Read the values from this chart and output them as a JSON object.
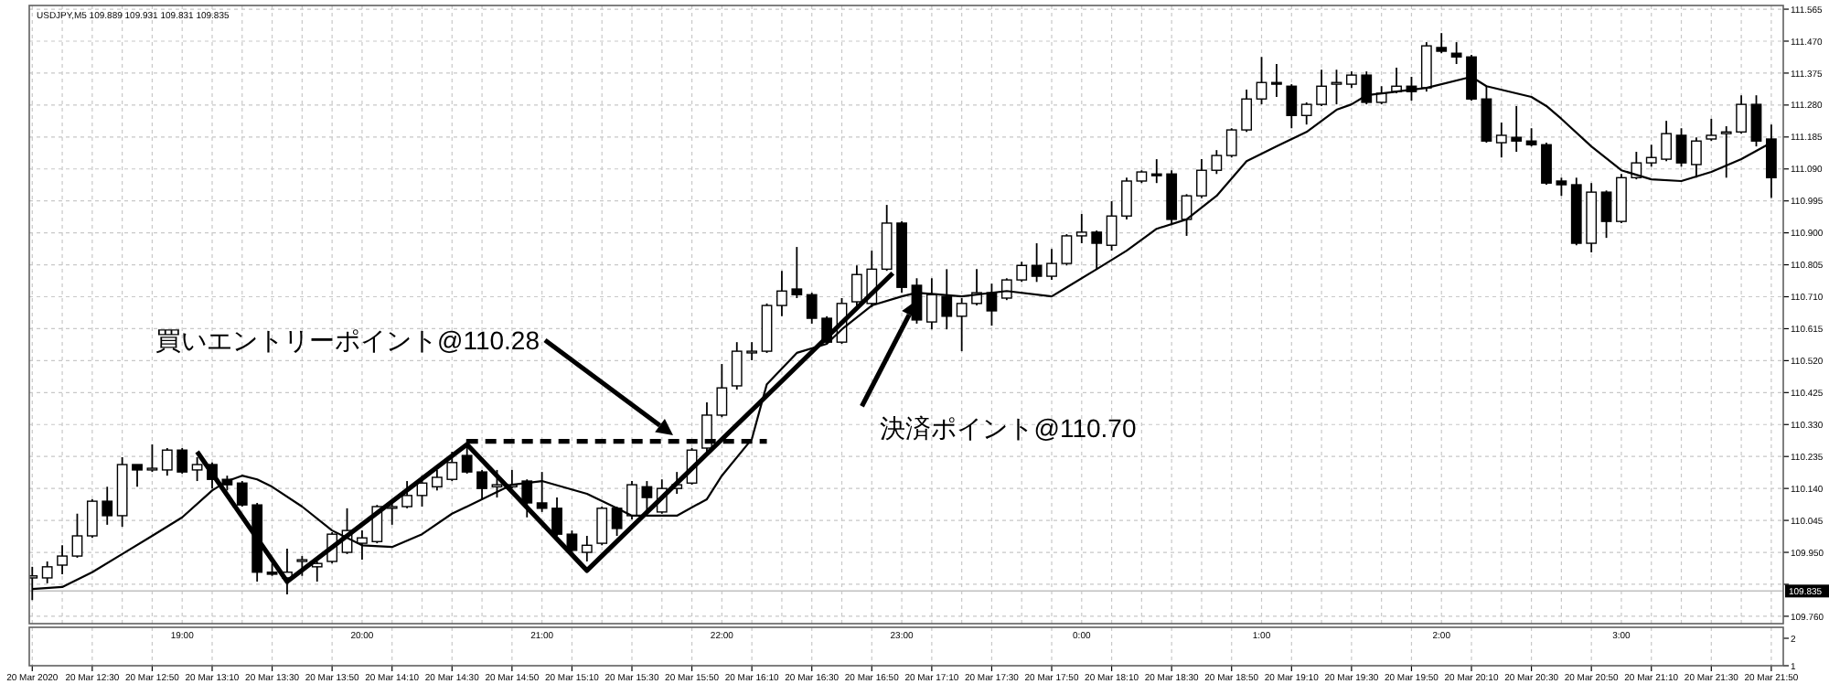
{
  "chart_data": [
    {
      "type": "candlestick",
      "title": "USDJPY,M5 109.889 109.931 109.831 109.835",
      "color": "#000000",
      "x": [
        "2020-03-20T12:10",
        "2020-03-20T12:15",
        "2020-03-20T12:20",
        "2020-03-20T12:25",
        "2020-03-20T12:30",
        "2020-03-20T12:35",
        "2020-03-20T12:40",
        "2020-03-20T12:45",
        "2020-03-20T12:50",
        "2020-03-20T12:55",
        "2020-03-20T13:00",
        "2020-03-20T13:05",
        "2020-03-20T13:10",
        "2020-03-20T13:15",
        "2020-03-20T13:20",
        "2020-03-20T13:25",
        "2020-03-20T13:30",
        "2020-03-20T13:35",
        "2020-03-20T13:40",
        "2020-03-20T13:45",
        "2020-03-20T13:50",
        "2020-03-20T13:55",
        "2020-03-20T14:00",
        "2020-03-20T14:05",
        "2020-03-20T14:10",
        "2020-03-20T14:15",
        "2020-03-20T14:20",
        "2020-03-20T14:25",
        "2020-03-20T14:30",
        "2020-03-20T14:35",
        "2020-03-20T14:40",
        "2020-03-20T14:45",
        "2020-03-20T14:50",
        "2020-03-20T14:55",
        "2020-03-20T15:00",
        "2020-03-20T15:05",
        "2020-03-20T15:10",
        "2020-03-20T15:15",
        "2020-03-20T15:20",
        "2020-03-20T15:25",
        "2020-03-20T15:30",
        "2020-03-20T15:35",
        "2020-03-20T15:40",
        "2020-03-20T15:45",
        "2020-03-20T15:50",
        "2020-03-20T15:55",
        "2020-03-20T16:00",
        "2020-03-20T16:05",
        "2020-03-20T16:10",
        "2020-03-20T16:15",
        "2020-03-20T16:20",
        "2020-03-20T16:25",
        "2020-03-20T16:30",
        "2020-03-20T16:35",
        "2020-03-20T16:40",
        "2020-03-20T16:45",
        "2020-03-20T16:50",
        "2020-03-20T16:55",
        "2020-03-20T17:00",
        "2020-03-20T17:05",
        "2020-03-20T17:10",
        "2020-03-20T17:15",
        "2020-03-20T17:20",
        "2020-03-20T17:25",
        "2020-03-20T17:30",
        "2020-03-20T17:35",
        "2020-03-20T17:40",
        "2020-03-20T17:45",
        "2020-03-20T17:50",
        "2020-03-20T17:55",
        "2020-03-20T18:00",
        "2020-03-20T18:05",
        "2020-03-20T18:10",
        "2020-03-20T18:15",
        "2020-03-20T18:20",
        "2020-03-20T18:25",
        "2020-03-20T18:30",
        "2020-03-20T18:35",
        "2020-03-20T18:40",
        "2020-03-20T18:45",
        "2020-03-20T18:50",
        "2020-03-20T18:55",
        "2020-03-20T19:00",
        "2020-03-20T19:05",
        "2020-03-20T19:10",
        "2020-03-20T19:15",
        "2020-03-20T19:20",
        "2020-03-20T19:25",
        "2020-03-20T19:30",
        "2020-03-20T19:35",
        "2020-03-20T19:40",
        "2020-03-20T19:45",
        "2020-03-20T19:50",
        "2020-03-20T19:55",
        "2020-03-20T20:00",
        "2020-03-20T20:05",
        "2020-03-20T20:10",
        "2020-03-20T20:15",
        "2020-03-20T20:20",
        "2020-03-20T20:25",
        "2020-03-20T20:30",
        "2020-03-20T20:35",
        "2020-03-20T20:40",
        "2020-03-20T20:45",
        "2020-03-20T20:50",
        "2020-03-20T20:55",
        "2020-03-20T21:00",
        "2020-03-20T21:05",
        "2020-03-20T21:10",
        "2020-03-20T21:15",
        "2020-03-20T21:20",
        "2020-03-20T21:25",
        "2020-03-20T21:30",
        "2020-03-20T21:35",
        "2020-03-20T21:40",
        "2020-03-20T21:45",
        "2020-03-20T21:50"
      ],
      "ohlc": [
        [
          109.874,
          109.907,
          109.808,
          109.88
        ],
        [
          109.874,
          109.923,
          109.858,
          109.907
        ],
        [
          109.912,
          109.971,
          109.885,
          109.939
        ],
        [
          109.939,
          110.065,
          109.934,
          109.999
        ],
        [
          109.999,
          110.108,
          109.993,
          110.102
        ],
        [
          110.102,
          110.145,
          110.032,
          110.059
        ],
        [
          110.059,
          110.233,
          110.026,
          110.211
        ],
        [
          110.211,
          110.211,
          110.145,
          110.195
        ],
        [
          110.195,
          110.271,
          110.189,
          110.2
        ],
        [
          110.195,
          110.26,
          110.178,
          110.254
        ],
        [
          110.254,
          110.26,
          110.184,
          110.189
        ],
        [
          110.195,
          110.233,
          110.162,
          110.211
        ],
        [
          110.211,
          110.217,
          110.14,
          110.167
        ],
        [
          110.167,
          110.178,
          110.134,
          110.151
        ],
        [
          110.156,
          110.162,
          110.086,
          110.091
        ],
        [
          110.091,
          110.097,
          109.863,
          109.891
        ],
        [
          109.891,
          109.917,
          109.88,
          109.885
        ],
        [
          109.874,
          109.961,
          109.825,
          109.891
        ],
        [
          109.923,
          109.939,
          109.88,
          109.928
        ],
        [
          109.907,
          109.923,
          109.863,
          109.917
        ],
        [
          109.923,
          110.01,
          109.917,
          110.004
        ],
        [
          109.95,
          110.081,
          109.945,
          110.015
        ],
        [
          109.977,
          110.015,
          109.928,
          109.993
        ],
        [
          109.982,
          110.091,
          109.977,
          110.086
        ],
        [
          110.081,
          110.097,
          110.032,
          110.086
        ],
        [
          110.086,
          110.162,
          110.081,
          110.119
        ],
        [
          110.119,
          110.178,
          110.086,
          110.156
        ],
        [
          110.145,
          110.195,
          110.134,
          110.173
        ],
        [
          110.167,
          110.249,
          110.162,
          110.217
        ],
        [
          110.238,
          110.287,
          110.184,
          110.189
        ],
        [
          110.189,
          110.195,
          110.108,
          110.14
        ],
        [
          110.145,
          110.195,
          110.113,
          110.151
        ],
        [
          110.145,
          110.195,
          110.14,
          110.151
        ],
        [
          110.162,
          110.167,
          110.054,
          110.097
        ],
        [
          110.097,
          110.189,
          110.07,
          110.081
        ],
        [
          110.081,
          110.113,
          109.999,
          110.004
        ],
        [
          110.004,
          110.015,
          109.95,
          109.956
        ],
        [
          109.95,
          109.999,
          109.923,
          109.971
        ],
        [
          109.977,
          110.086,
          109.971,
          110.081
        ],
        [
          110.081,
          110.086,
          109.999,
          110.021
        ],
        [
          110.059,
          110.162,
          110.048,
          110.151
        ],
        [
          110.145,
          110.162,
          110.07,
          110.113
        ],
        [
          110.07,
          110.167,
          110.065,
          110.14
        ],
        [
          110.14,
          110.189,
          110.124,
          110.151
        ],
        [
          110.156,
          110.26,
          110.151,
          110.254
        ],
        [
          110.26,
          110.396,
          110.249,
          110.358
        ],
        [
          110.358,
          110.51,
          110.352,
          110.439
        ],
        [
          110.445,
          110.575,
          110.434,
          110.548
        ],
        [
          110.543,
          110.575,
          110.521,
          110.548
        ],
        [
          110.548,
          110.69,
          110.543,
          110.684
        ],
        [
          110.684,
          110.787,
          110.652,
          110.727
        ],
        [
          110.733,
          110.858,
          110.706,
          110.716
        ],
        [
          110.716,
          110.722,
          110.63,
          110.646
        ],
        [
          110.646,
          110.652,
          110.57,
          110.575
        ],
        [
          110.575,
          110.706,
          110.57,
          110.69
        ],
        [
          110.695,
          110.803,
          110.684,
          110.776
        ],
        [
          110.69,
          110.847,
          110.679,
          110.792
        ],
        [
          110.792,
          110.983,
          110.787,
          110.929
        ],
        [
          110.929,
          110.934,
          110.722,
          110.738
        ],
        [
          110.744,
          110.765,
          110.63,
          110.641
        ],
        [
          110.635,
          110.765,
          110.613,
          110.716
        ],
        [
          110.711,
          110.792,
          110.613,
          110.652
        ],
        [
          110.652,
          110.706,
          110.548,
          110.69
        ],
        [
          110.69,
          110.792,
          110.684,
          110.722
        ],
        [
          110.722,
          110.749,
          110.624,
          110.668
        ],
        [
          110.706,
          110.765,
          110.7,
          110.76
        ],
        [
          110.76,
          110.814,
          110.754,
          110.803
        ],
        [
          110.803,
          110.869,
          110.754,
          110.771
        ],
        [
          110.771,
          110.852,
          110.76,
          110.809
        ],
        [
          110.809,
          110.896,
          110.803,
          110.891
        ],
        [
          110.891,
          110.956,
          110.869,
          110.902
        ],
        [
          110.902,
          110.907,
          110.792,
          110.869
        ],
        [
          110.863,
          110.994,
          110.847,
          110.95
        ],
        [
          110.95,
          111.064,
          110.94,
          111.054
        ],
        [
          111.054,
          111.086,
          111.048,
          111.081
        ],
        [
          111.075,
          111.119,
          111.048,
          111.07
        ],
        [
          111.075,
          111.086,
          110.923,
          110.94
        ],
        [
          110.94,
          111.015,
          110.891,
          111.01
        ],
        [
          111.01,
          111.119,
          111.004,
          111.086
        ],
        [
          111.086,
          111.146,
          111.075,
          111.13
        ],
        [
          111.13,
          111.211,
          111.124,
          111.206
        ],
        [
          111.206,
          111.326,
          111.2,
          111.298
        ],
        [
          111.298,
          111.423,
          111.282,
          111.347
        ],
        [
          111.347,
          111.402,
          111.304,
          111.342
        ],
        [
          111.336,
          111.342,
          111.211,
          111.249
        ],
        [
          111.249,
          111.288,
          111.222,
          111.282
        ],
        [
          111.282,
          111.385,
          111.277,
          111.336
        ],
        [
          111.342,
          111.385,
          111.282,
          111.347
        ],
        [
          111.342,
          111.38,
          111.331,
          111.369
        ],
        [
          111.369,
          111.38,
          111.282,
          111.288
        ],
        [
          111.288,
          111.336,
          111.282,
          111.315
        ],
        [
          111.32,
          111.391,
          111.315,
          111.336
        ],
        [
          111.336,
          111.364,
          111.293,
          111.32
        ],
        [
          111.331,
          111.467,
          111.32,
          111.456
        ],
        [
          111.451,
          111.494,
          111.434,
          111.44
        ],
        [
          111.434,
          111.467,
          111.402,
          111.423
        ],
        [
          111.423,
          111.429,
          111.293,
          111.298
        ],
        [
          111.298,
          111.336,
          111.168,
          111.173
        ],
        [
          111.168,
          111.228,
          111.124,
          111.19
        ],
        [
          111.184,
          111.277,
          111.141,
          111.173
        ],
        [
          111.173,
          111.211,
          111.157,
          111.162
        ],
        [
          111.162,
          111.168,
          111.043,
          111.048
        ],
        [
          111.054,
          111.064,
          111.01,
          111.043
        ],
        [
          111.043,
          111.064,
          110.863,
          110.869
        ],
        [
          110.869,
          111.048,
          110.842,
          111.021
        ],
        [
          111.021,
          111.026,
          110.885,
          110.934
        ],
        [
          110.934,
          111.075,
          110.929,
          111.064
        ],
        [
          111.064,
          111.141,
          111.059,
          111.108
        ],
        [
          111.108,
          111.162,
          111.097,
          111.124
        ],
        [
          111.119,
          111.233,
          111.113,
          111.195
        ],
        [
          111.19,
          111.211,
          111.097,
          111.108
        ],
        [
          111.103,
          111.184,
          111.064,
          111.173
        ],
        [
          111.179,
          111.239,
          111.173,
          111.19
        ],
        [
          111.195,
          111.217,
          111.064,
          111.2
        ],
        [
          111.2,
          111.309,
          111.195,
          111.282
        ],
        [
          111.282,
          111.309,
          111.157,
          111.173
        ],
        [
          111.179,
          111.222,
          111.004,
          111.064
        ]
      ],
      "series": [
        {
          "type": "line",
          "color": "#000000",
          "x": [
            "2020-03-20T12:10",
            "2020-03-20T12:20",
            "2020-03-20T12:30",
            "2020-03-20T12:40",
            "2020-03-20T12:50",
            "2020-03-20T13:00",
            "2020-03-20T13:10",
            "2020-03-20T13:15",
            "2020-03-20T13:20",
            "2020-03-20T13:25",
            "2020-03-20T13:30",
            "2020-03-20T13:40",
            "2020-03-20T13:50",
            "2020-03-20T14:00",
            "2020-03-20T14:10",
            "2020-03-20T14:20",
            "2020-03-20T14:30",
            "2020-03-20T14:35",
            "2020-03-20T14:50",
            "2020-03-20T15:00",
            "2020-03-20T15:15",
            "2020-03-20T15:25",
            "2020-03-20T15:30",
            "2020-03-20T15:45",
            "2020-03-20T15:55",
            "2020-03-20T16:00",
            "2020-03-20T16:10",
            "2020-03-20T16:15",
            "2020-03-20T16:25",
            "2020-03-20T16:35",
            "2020-03-20T16:40",
            "2020-03-20T16:50",
            "2020-03-20T17:00",
            "2020-03-20T17:05",
            "2020-03-20T17:20",
            "2020-03-20T17:35",
            "2020-03-20T17:50",
            "2020-03-20T17:55",
            "2020-03-20T18:05",
            "2020-03-20T18:15",
            "2020-03-20T18:25",
            "2020-03-20T18:35",
            "2020-03-20T18:45",
            "2020-03-20T18:55",
            "2020-03-20T19:05",
            "2020-03-20T19:15",
            "2020-03-20T19:25",
            "2020-03-20T19:30",
            "2020-03-20T19:35",
            "2020-03-20T19:45",
            "2020-03-20T19:55",
            "2020-03-20T20:10",
            "2020-03-20T20:15",
            "2020-03-20T20:30",
            "2020-03-20T20:35",
            "2020-03-20T20:40",
            "2020-03-20T20:50",
            "2020-03-20T21:00",
            "2020-03-20T21:10",
            "2020-03-20T21:20",
            "2020-03-20T21:30",
            "2020-03-20T21:40",
            "2020-03-20T21:50"
          ],
          "values": [
            109.841,
            109.847,
            109.891,
            109.945,
            109.999,
            110.054,
            110.134,
            110.162,
            110.178,
            110.167,
            110.145,
            110.086,
            110.015,
            109.971,
            109.966,
            110.004,
            110.065,
            110.086,
            110.151,
            110.162,
            110.124,
            110.081,
            110.059,
            110.059,
            110.108,
            110.178,
            110.287,
            110.45,
            110.543,
            110.57,
            110.613,
            110.684,
            110.711,
            110.722,
            110.711,
            110.727,
            110.711,
            110.738,
            110.792,
            110.847,
            110.912,
            110.94,
            111.01,
            111.113,
            111.157,
            111.2,
            111.266,
            111.282,
            111.309,
            111.32,
            111.331,
            111.364,
            111.336,
            111.304,
            111.277,
            111.239,
            111.157,
            111.086,
            111.059,
            111.054,
            111.081,
            111.119,
            111.168
          ]
        },
        {
          "type": "line",
          "color": "#000000",
          "x": [
            "2020-03-20T13:05",
            "2020-03-20T13:35",
            "2020-03-20T14:35",
            "2020-03-20T15:15",
            "2020-03-20T16:57"
          ],
          "values": [
            110.249,
            109.863,
            110.271,
            109.896,
            110.78
          ]
        },
        {
          "type": "line",
          "color": "#000000",
          "line_style": "dashed",
          "x": [
            "2020-03-20T14:35",
            "2020-03-20T16:15"
          ],
          "values": [
            110.28,
            110.28
          ]
        }
      ],
      "xlim": [
        "2020-03-20T12:09",
        "2020-03-20T21:54"
      ],
      "xticks": [
        {
          "value": "2020-03-20T12:10",
          "label": null
        },
        {
          "value": "2020-03-20T12:20",
          "label": null
        },
        {
          "value": "2020-03-20T12:30",
          "label": null
        },
        {
          "value": "2020-03-20T12:40",
          "label": null
        },
        {
          "value": "2020-03-20T12:50",
          "label": null
        },
        {
          "value": "2020-03-20T13:00",
          "label": null
        },
        {
          "value": "2020-03-20T13:10",
          "label": null
        },
        {
          "value": "2020-03-20T13:20",
          "label": null
        },
        {
          "value": "2020-03-20T13:30",
          "label": null
        },
        {
          "value": "2020-03-20T13:40",
          "label": null
        },
        {
          "value": "2020-03-20T13:50",
          "label": null
        },
        {
          "value": "2020-03-20T14:00",
          "label": null
        },
        {
          "value": "2020-03-20T14:10",
          "label": null
        },
        {
          "value": "2020-03-20T14:20",
          "label": null
        },
        {
          "value": "2020-03-20T14:30",
          "label": null
        },
        {
          "value": "2020-03-20T14:40",
          "label": null
        },
        {
          "value": "2020-03-20T14:50",
          "label": null
        },
        {
          "value": "2020-03-20T15:00",
          "label": null
        },
        {
          "value": "2020-03-20T15:10",
          "label": null
        },
        {
          "value": "2020-03-20T15:20",
          "label": null
        },
        {
          "value": "2020-03-20T15:30",
          "label": null
        },
        {
          "value": "2020-03-20T15:40",
          "label": null
        },
        {
          "value": "2020-03-20T15:50",
          "label": null
        },
        {
          "value": "2020-03-20T16:00",
          "label": null
        },
        {
          "value": "2020-03-20T16:10",
          "label": null
        },
        {
          "value": "2020-03-20T16:20",
          "label": null
        },
        {
          "value": "2020-03-20T16:30",
          "label": null
        },
        {
          "value": "2020-03-20T16:40",
          "label": null
        },
        {
          "value": "2020-03-20T16:50",
          "label": null
        },
        {
          "value": "2020-03-20T17:00",
          "label": null
        },
        {
          "value": "2020-03-20T17:10",
          "label": null
        },
        {
          "value": "2020-03-20T17:20",
          "label": null
        },
        {
          "value": "2020-03-20T17:30",
          "label": null
        },
        {
          "value": "2020-03-20T17:40",
          "label": null
        },
        {
          "value": "2020-03-20T17:50",
          "label": null
        },
        {
          "value": "2020-03-20T18:00",
          "label": null
        },
        {
          "value": "2020-03-20T18:10",
          "label": null
        },
        {
          "value": "2020-03-20T18:20",
          "label": null
        },
        {
          "value": "2020-03-20T18:30",
          "label": null
        },
        {
          "value": "2020-03-20T18:40",
          "label": null
        },
        {
          "value": "2020-03-20T18:50",
          "label": null
        },
        {
          "value": "2020-03-20T19:00",
          "label": null
        },
        {
          "value": "2020-03-20T19:10",
          "label": null
        },
        {
          "value": "2020-03-20T19:20",
          "label": null
        },
        {
          "value": "2020-03-20T19:30",
          "label": null
        },
        {
          "value": "2020-03-20T19:40",
          "label": null
        },
        {
          "value": "2020-03-20T19:50",
          "label": null
        },
        {
          "value": "2020-03-20T20:00",
          "label": null
        },
        {
          "value": "2020-03-20T20:10",
          "label": null
        },
        {
          "value": "2020-03-20T20:20",
          "label": null
        },
        {
          "value": "2020-03-20T20:30",
          "label": null
        },
        {
          "value": "2020-03-20T20:40",
          "label": null
        },
        {
          "value": "2020-03-20T20:50",
          "label": null
        },
        {
          "value": "2020-03-20T21:00",
          "label": null
        },
        {
          "value": "2020-03-20T21:10",
          "label": null
        },
        {
          "value": "2020-03-20T21:20",
          "label": null
        },
        {
          "value": "2020-03-20T21:30",
          "label": null
        },
        {
          "value": "2020-03-20T21:40",
          "label": null
        },
        {
          "value": "2020-03-20T21:50",
          "label": null
        }
      ],
      "ylim": [
        109.738,
        111.576
      ],
      "yticks": [
        111.565,
        {
          "value": 111.47,
          "label": "111.470"
        },
        111.375,
        {
          "value": 111.28,
          "label": "111.280"
        },
        111.185,
        {
          "value": 111.09,
          "label": "111.090"
        },
        110.995,
        {
          "value": 110.9,
          "label": "110.900"
        },
        110.805,
        {
          "value": 110.71,
          "label": "110.710"
        },
        110.615,
        {
          "value": 110.52,
          "label": "110.520"
        },
        110.425,
        {
          "value": 110.33,
          "label": "110.330"
        },
        110.235,
        {
          "value": 110.14,
          "label": "110.140"
        },
        110.045,
        {
          "value": 109.95,
          "label": "109.950"
        },
        {
          "value": 109.855,
          "label": null
        },
        {
          "value": 109.76,
          "label": "109.760"
        }
      ],
      "grid": true,
      "tick_labels": "y",
      "ref_lines": [
        {
          "axis": "y",
          "value": 109.835,
          "label": "109.835",
          "color": "#c0c0c0"
        }
      ],
      "annotations": [
        "買いエントリーポイント@110.28",
        {
          "text": "決済ポイント@110.70",
          "x": "2020-03-20T17:05",
          "y": 110.7
        }
      ]
    },
    {
      "type": "line",
      "xlim": [
        "2020-03-20T12:09",
        "2020-03-20T21:54"
      ],
      "xticks": [
        {
          "value": "2020-03-20T12:10",
          "label": "20 Mar 2020"
        },
        {
          "value": "2020-03-20T12:30",
          "label": "20 Mar 12:30"
        },
        {
          "value": "2020-03-20T12:50",
          "label": "20 Mar 12:50"
        },
        {
          "value": "2020-03-20T13:10",
          "label": "20 Mar 13:10"
        },
        {
          "value": "2020-03-20T13:30",
          "label": "20 Mar 13:30"
        },
        {
          "value": "2020-03-20T13:50",
          "label": "20 Mar 13:50"
        },
        {
          "value": "2020-03-20T14:10",
          "label": "20 Mar 14:10"
        },
        {
          "value": "2020-03-20T14:30",
          "label": "20 Mar 14:30"
        },
        {
          "value": "2020-03-20T14:50",
          "label": "20 Mar 14:50"
        },
        {
          "value": "2020-03-20T15:10",
          "label": "20 Mar 15:10"
        },
        {
          "value": "2020-03-20T15:30",
          "label": "20 Mar 15:30"
        },
        {
          "value": "2020-03-20T15:50",
          "label": "20 Mar 15:50"
        },
        {
          "value": "2020-03-20T16:10",
          "label": "20 Mar 16:10"
        },
        {
          "value": "2020-03-20T16:30",
          "label": "20 Mar 16:30"
        },
        {
          "value": "2020-03-20T16:50",
          "label": "20 Mar 16:50"
        },
        {
          "value": "2020-03-20T17:10",
          "label": "20 Mar 17:10"
        },
        {
          "value": "2020-03-20T17:30",
          "label": "20 Mar 17:30"
        },
        {
          "value": "2020-03-20T17:50",
          "label": "20 Mar 17:50"
        },
        {
          "value": "2020-03-20T18:10",
          "label": "20 Mar 18:10"
        },
        {
          "value": "2020-03-20T18:30",
          "label": "20 Mar 18:30"
        },
        {
          "value": "2020-03-20T18:50",
          "label": "20 Mar 18:50"
        },
        {
          "value": "2020-03-20T19:10",
          "label": "20 Mar 19:10"
        },
        {
          "value": "2020-03-20T19:30",
          "label": "20 Mar 19:30"
        },
        {
          "value": "2020-03-20T19:50",
          "label": "20 Mar 19:50"
        },
        {
          "value": "2020-03-20T20:10",
          "label": "20 Mar 20:10"
        },
        {
          "value": "2020-03-20T20:30",
          "label": "20 Mar 20:30"
        },
        {
          "value": "2020-03-20T20:50",
          "label": "20 Mar 20:50"
        },
        {
          "value": "2020-03-20T21:10",
          "label": "20 Mar 21:10"
        },
        {
          "value": "2020-03-20T21:30",
          "label": "20 Mar 21:30"
        },
        {
          "value": "2020-03-20T21:50",
          "label": "20 Mar 21:50"
        }
      ],
      "x2lim": [
        "2020-03-20T18:09",
        "2020-03-21T03:54"
      ],
      "x2ticks": [
        {
          "value": "2020-03-20T19:00",
          "label": "19:00"
        },
        {
          "value": "2020-03-20T20:00",
          "label": "20:00"
        },
        {
          "value": "2020-03-20T21:00",
          "label": "21:00"
        },
        {
          "value": "2020-03-20T22:00",
          "label": "22:00"
        },
        {
          "value": "2020-03-20T23:00",
          "label": "23:00"
        },
        {
          "value": "2020-03-21T00:00",
          "label": "0:00"
        },
        {
          "value": "2020-03-21T01:00",
          "label": "1:00"
        },
        {
          "value": "2020-03-21T02:00",
          "label": "2:00"
        },
        {
          "value": "2020-03-21T03:00",
          "label": "3:00"
        }
      ],
      "ylim": [
        1,
        2.4
      ],
      "yticks": [
        1,
        2
      ],
      "grid": "x"
    }
  ]
}
